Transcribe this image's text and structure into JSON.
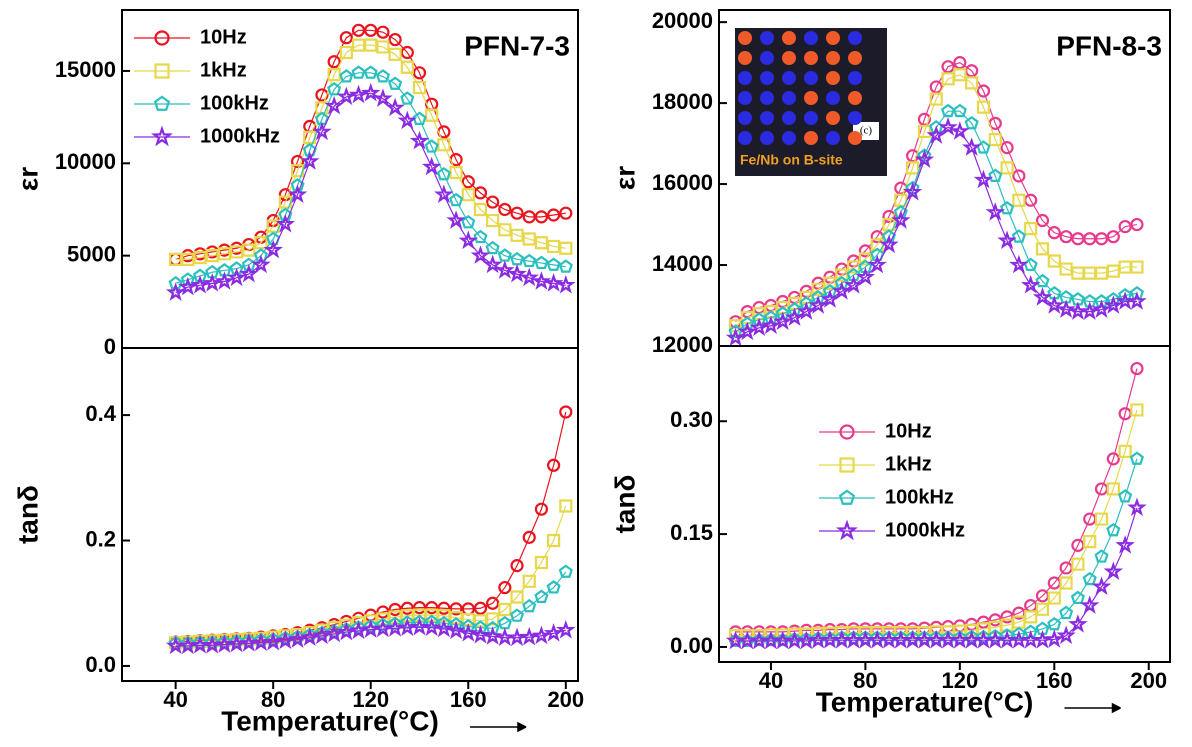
{
  "chart_data": [
    {
      "type": "line",
      "ylabel": "εr",
      "annotation": "PFN-7-3",
      "legend": "upper left",
      "x": [
        40,
        45,
        50,
        55,
        60,
        65,
        70,
        75,
        80,
        85,
        90,
        95,
        100,
        105,
        110,
        115,
        120,
        125,
        130,
        135,
        140,
        145,
        150,
        155,
        160,
        165,
        170,
        175,
        180,
        185,
        190,
        195,
        200
      ],
      "xlim": [
        18,
        205
      ],
      "ylim": [
        0,
        18300
      ],
      "yticks": [
        0,
        5000,
        10000,
        15000
      ],
      "series": [
        {
          "name": "10Hz",
          "color": "#e8141e",
          "marker": "circle",
          "values": [
            4800,
            5000,
            5100,
            5200,
            5300,
            5400,
            5600,
            6000,
            6900,
            8300,
            10100,
            12000,
            13700,
            15500,
            16800,
            17200,
            17200,
            17100,
            16700,
            16000,
            14900,
            13200,
            11700,
            10200,
            9000,
            8400,
            7900,
            7500,
            7300,
            7100,
            7100,
            7200,
            7300
          ]
        },
        {
          "name": "1kHz",
          "color": "#e6d84a",
          "marker": "square",
          "values": [
            4800,
            4800,
            4900,
            5000,
            5100,
            5200,
            5300,
            5700,
            6600,
            7900,
            9600,
            11400,
            13000,
            14800,
            16000,
            16400,
            16400,
            16300,
            15900,
            15200,
            14100,
            12600,
            11000,
            9500,
            8300,
            7500,
            6900,
            6400,
            6100,
            5900,
            5700,
            5500,
            5400
          ]
        },
        {
          "name": "100kHz",
          "color": "#2bbfbf",
          "marker": "pentagon",
          "values": [
            3500,
            3700,
            3900,
            4100,
            4200,
            4300,
            4500,
            5000,
            5900,
            7200,
            8800,
            10700,
            12400,
            14000,
            14700,
            14900,
            14900,
            14700,
            14300,
            13500,
            12400,
            10900,
            9400,
            8000,
            6800,
            6000,
            5400,
            5000,
            4800,
            4700,
            4600,
            4500,
            4400
          ]
        },
        {
          "name": "1000kHz",
          "color": "#8a2be2",
          "marker": "star",
          "values": [
            3000,
            3300,
            3400,
            3500,
            3600,
            3800,
            4000,
            4500,
            5300,
            6700,
            8300,
            10100,
            11700,
            13100,
            13600,
            13700,
            13800,
            13500,
            13000,
            12300,
            11200,
            9800,
            8300,
            6900,
            5800,
            5000,
            4500,
            4200,
            4000,
            3800,
            3600,
            3500,
            3400
          ]
        }
      ]
    },
    {
      "type": "line",
      "ylabel": "tanδ",
      "xlabel": "Temperature(°C)",
      "x": [
        40,
        45,
        50,
        55,
        60,
        65,
        70,
        75,
        80,
        85,
        90,
        95,
        100,
        105,
        110,
        115,
        120,
        125,
        130,
        135,
        140,
        145,
        150,
        155,
        160,
        165,
        170,
        175,
        180,
        185,
        190,
        195,
        200
      ],
      "xlim": [
        18,
        205
      ],
      "ylim": [
        -0.024,
        0.507
      ],
      "xticks": [
        40,
        80,
        120,
        160,
        200
      ],
      "yticks": [
        {
          "value": 0,
          "label": "0.0"
        },
        0.2,
        0.4
      ],
      "series": [
        {
          "name": "10Hz",
          "color": "#e8141e",
          "marker": "circle",
          "values": [
            0.038,
            0.039,
            0.04,
            0.041,
            0.042,
            0.043,
            0.044,
            0.046,
            0.048,
            0.05,
            0.053,
            0.057,
            0.061,
            0.066,
            0.071,
            0.076,
            0.081,
            0.086,
            0.09,
            0.092,
            0.093,
            0.093,
            0.092,
            0.091,
            0.091,
            0.092,
            0.1,
            0.125,
            0.16,
            0.205,
            0.25,
            0.32,
            0.405
          ]
        },
        {
          "name": "1kHz",
          "color": "#e6d84a",
          "marker": "square",
          "values": [
            0.037,
            0.038,
            0.039,
            0.04,
            0.041,
            0.042,
            0.043,
            0.044,
            0.046,
            0.048,
            0.05,
            0.053,
            0.057,
            0.061,
            0.065,
            0.069,
            0.072,
            0.075,
            0.078,
            0.08,
            0.081,
            0.081,
            0.08,
            0.077,
            0.074,
            0.072,
            0.075,
            0.09,
            0.11,
            0.135,
            0.165,
            0.2,
            0.255
          ]
        },
        {
          "name": "100kHz",
          "color": "#2bbfbf",
          "marker": "pentagon",
          "values": [
            0.036,
            0.036,
            0.037,
            0.037,
            0.038,
            0.039,
            0.04,
            0.041,
            0.042,
            0.044,
            0.046,
            0.049,
            0.052,
            0.055,
            0.058,
            0.061,
            0.063,
            0.065,
            0.067,
            0.069,
            0.07,
            0.07,
            0.068,
            0.066,
            0.063,
            0.061,
            0.06,
            0.068,
            0.08,
            0.095,
            0.11,
            0.125,
            0.15
          ]
        },
        {
          "name": "1000kHz",
          "color": "#8a2be2",
          "marker": "star",
          "values": [
            0.032,
            0.032,
            0.033,
            0.033,
            0.034,
            0.035,
            0.036,
            0.037,
            0.038,
            0.04,
            0.042,
            0.045,
            0.048,
            0.051,
            0.054,
            0.056,
            0.058,
            0.059,
            0.06,
            0.061,
            0.062,
            0.061,
            0.059,
            0.056,
            0.052,
            0.049,
            0.047,
            0.045,
            0.045,
            0.046,
            0.048,
            0.052,
            0.057
          ]
        }
      ]
    },
    {
      "type": "line",
      "ylabel": "εr",
      "annotation": "PFN-8-3",
      "inset_label": "Fe/Nb on B-site",
      "inset_tag": "(c)",
      "x": [
        25,
        30,
        35,
        40,
        45,
        50,
        55,
        60,
        65,
        70,
        75,
        80,
        85,
        90,
        95,
        100,
        105,
        110,
        115,
        120,
        125,
        130,
        135,
        140,
        145,
        150,
        155,
        160,
        165,
        170,
        175,
        180,
        185,
        190,
        195
      ],
      "xlim": [
        18,
        209
      ],
      "ylim": [
        12000,
        20300
      ],
      "yticks": [
        12000,
        14000,
        16000,
        18000,
        20000
      ],
      "series": [
        {
          "name": "10Hz",
          "color": "#e83a8c",
          "marker": "circle",
          "values": [
            12600,
            12850,
            12950,
            13000,
            13100,
            13200,
            13350,
            13550,
            13700,
            13900,
            14100,
            14350,
            14700,
            15200,
            15900,
            16700,
            17600,
            18400,
            18900,
            19000,
            18800,
            18300,
            17500,
            16900,
            16200,
            15600,
            15100,
            14800,
            14700,
            14650,
            14650,
            14650,
            14700,
            14950,
            15000
          ]
        },
        {
          "name": "1kHz",
          "color": "#e6d84a",
          "marker": "square",
          "values": [
            12500,
            12700,
            12800,
            12850,
            12950,
            13050,
            13200,
            13400,
            13550,
            13750,
            13950,
            14150,
            14500,
            15000,
            15600,
            16400,
            17300,
            18100,
            18600,
            18700,
            18500,
            17900,
            17100,
            16400,
            15600,
            14900,
            14400,
            14100,
            13900,
            13800,
            13800,
            13800,
            13850,
            13950,
            13950
          ]
        },
        {
          "name": "100kHz",
          "color": "#2bbfbf",
          "marker": "pentagon",
          "values": [
            12350,
            12550,
            12650,
            12700,
            12800,
            12900,
            13050,
            13200,
            13350,
            13550,
            13750,
            13950,
            14250,
            14700,
            15300,
            15900,
            16700,
            17400,
            17800,
            17800,
            17500,
            16900,
            16200,
            15400,
            14700,
            14000,
            13600,
            13300,
            13200,
            13150,
            13100,
            13100,
            13150,
            13250,
            13300
          ]
        },
        {
          "name": "1000kHz",
          "color": "#8a2be2",
          "marker": "star",
          "values": [
            12200,
            12350,
            12450,
            12500,
            12600,
            12700,
            12850,
            13000,
            13150,
            13350,
            13500,
            13700,
            14000,
            14500,
            15100,
            15800,
            16600,
            17200,
            17400,
            17300,
            16900,
            16100,
            15300,
            14600,
            14000,
            13500,
            13200,
            13000,
            12900,
            12850,
            12850,
            12900,
            13000,
            13100,
            13100
          ]
        }
      ]
    },
    {
      "type": "line",
      "ylabel": "tanδ",
      "xlabel": "Temperature(°C)",
      "legend": "center left",
      "x": [
        25,
        30,
        35,
        40,
        45,
        50,
        55,
        60,
        65,
        70,
        75,
        80,
        85,
        90,
        95,
        100,
        105,
        110,
        115,
        120,
        125,
        130,
        135,
        140,
        145,
        150,
        155,
        160,
        165,
        170,
        175,
        180,
        185,
        190,
        195
      ],
      "xlim": [
        18,
        209
      ],
      "ylim": [
        -0.02,
        0.4
      ],
      "xticks": [
        40,
        80,
        120,
        160,
        200
      ],
      "yticks": [
        {
          "value": 0,
          "label": "0.00"
        },
        {
          "value": 0.15,
          "label": "0.15"
        },
        {
          "value": 0.3,
          "label": "0.30"
        }
      ],
      "series": [
        {
          "name": "10Hz",
          "color": "#e83a8c",
          "marker": "circle",
          "values": [
            0.02,
            0.02,
            0.02,
            0.02,
            0.02,
            0.021,
            0.022,
            0.022,
            0.023,
            0.023,
            0.024,
            0.024,
            0.024,
            0.024,
            0.024,
            0.024,
            0.025,
            0.026,
            0.027,
            0.028,
            0.03,
            0.033,
            0.036,
            0.04,
            0.045,
            0.055,
            0.068,
            0.085,
            0.105,
            0.135,
            0.17,
            0.21,
            0.25,
            0.31,
            0.37
          ]
        },
        {
          "name": "1kHz",
          "color": "#e6d84a",
          "marker": "square",
          "values": [
            0.015,
            0.015,
            0.015,
            0.016,
            0.016,
            0.017,
            0.017,
            0.018,
            0.018,
            0.019,
            0.019,
            0.019,
            0.019,
            0.019,
            0.019,
            0.019,
            0.019,
            0.02,
            0.02,
            0.021,
            0.022,
            0.024,
            0.026,
            0.029,
            0.033,
            0.04,
            0.05,
            0.065,
            0.085,
            0.11,
            0.14,
            0.17,
            0.21,
            0.26,
            0.315
          ]
        },
        {
          "name": "100kHz",
          "color": "#2bbfbf",
          "marker": "pentagon",
          "values": [
            0.008,
            0.008,
            0.009,
            0.009,
            0.009,
            0.01,
            0.01,
            0.011,
            0.011,
            0.012,
            0.012,
            0.012,
            0.012,
            0.012,
            0.012,
            0.012,
            0.012,
            0.012,
            0.012,
            0.012,
            0.013,
            0.013,
            0.014,
            0.015,
            0.017,
            0.02,
            0.024,
            0.03,
            0.045,
            0.065,
            0.09,
            0.12,
            0.155,
            0.2,
            0.25
          ]
        },
        {
          "name": "1000kHz",
          "color": "#8a2be2",
          "marker": "star",
          "values": [
            0.008,
            0.008,
            0.008,
            0.008,
            0.008,
            0.008,
            0.008,
            0.009,
            0.009,
            0.009,
            0.009,
            0.009,
            0.009,
            0.009,
            0.009,
            0.009,
            0.009,
            0.009,
            0.009,
            0.009,
            0.009,
            0.009,
            0.009,
            0.009,
            0.009,
            0.009,
            0.009,
            0.01,
            0.015,
            0.03,
            0.055,
            0.08,
            0.1,
            0.135,
            0.185
          ]
        }
      ]
    }
  ]
}
